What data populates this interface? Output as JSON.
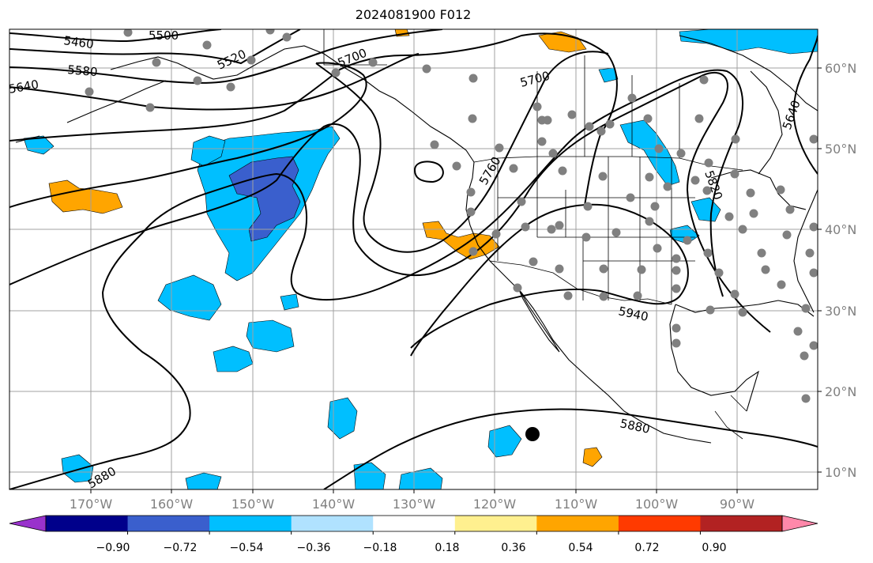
{
  "title": "2024081900 F012",
  "latitude_labels": [
    "60°N",
    "50°N",
    "40°N",
    "30°N",
    "20°N",
    "10°N"
  ],
  "longitude_labels": [
    "170°W",
    "160°W",
    "150°W",
    "140°W",
    "130°W",
    "120°W",
    "110°W",
    "100°W",
    "90°W"
  ],
  "contour_labels": [
    "5460",
    "5500",
    "5520",
    "5580",
    "5640",
    "5700",
    "5700",
    "5760",
    "5820",
    "5640",
    "5940",
    "5880",
    "5880"
  ],
  "colorbar": {
    "tick_labels": [
      "−0.90",
      "−0.72",
      "−0.54",
      "−0.36",
      "−0.18",
      "0.18",
      "0.36",
      "0.54",
      "0.72",
      "0.90"
    ],
    "colors": [
      "#9932cc",
      "#00008b",
      "#3a5fcd",
      "#00bfff",
      "#b0e2ff",
      "#ffffff",
      "#fff08f",
      "#ffa500",
      "#ff3a00",
      "#b22222",
      "#ff88aa"
    ]
  },
  "colors": {
    "gridline": "#a0a0a0",
    "station_dot": "#808080",
    "marker": "#000000",
    "coastline": "#000000"
  }
}
